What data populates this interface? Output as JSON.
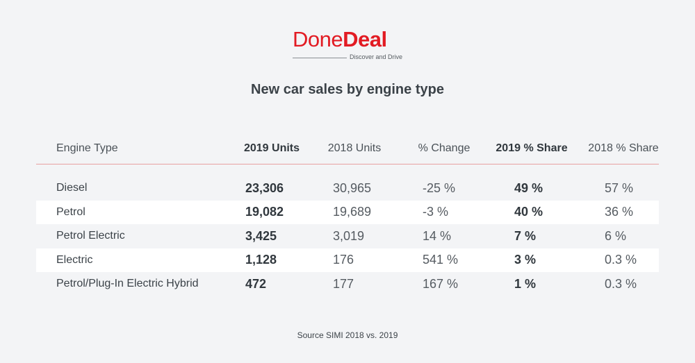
{
  "logo": {
    "word_light": "Done",
    "word_bold": "Deal",
    "tagline": "Discover and Drive",
    "color": "#e21b23"
  },
  "chart_data": {
    "type": "table",
    "title": "New car sales by engine type",
    "columns": [
      "Engine Type",
      "2019 Units",
      "2018 Units",
      "% Change",
      "2019 % Share",
      "2018 % Share"
    ],
    "bold_columns": [
      1,
      4
    ],
    "rows": [
      [
        "Diesel",
        "23,306",
        "30,965",
        "-25 %",
        "49 %",
        "57 %"
      ],
      [
        "Petrol",
        "19,082",
        "19,689",
        "-3 %",
        "40 %",
        "36 %"
      ],
      [
        "Petrol Electric",
        "3,425",
        "3,019",
        "14 %",
        "7 %",
        "6 %"
      ],
      [
        "Electric",
        "1,128",
        "176",
        "541 %",
        "3 %",
        "0.3 %"
      ],
      [
        "Petrol/Plug-In Electric Hybrid",
        "472",
        "177",
        "167 %",
        "1 %",
        "0.3 %"
      ]
    ],
    "source": "Source SIMI 2018 vs. 2019"
  }
}
